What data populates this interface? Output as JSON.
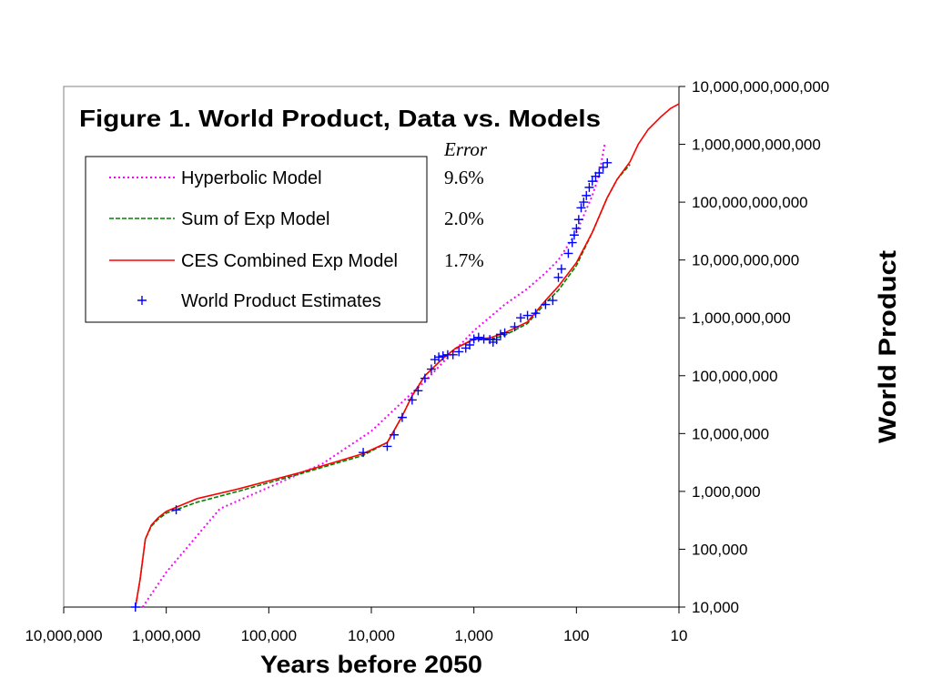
{
  "chart_data": {
    "type": "line",
    "title": "Figure 1.  World Product, Data vs. Models",
    "xlabel": "Years before 2050",
    "ylabel": "World Product",
    "x_scale": "log-reversed",
    "y_scale": "log",
    "xlim": [
      10000000,
      10
    ],
    "ylim": [
      10000,
      10000000000000
    ],
    "x_ticks": [
      {
        "value": 10000000,
        "label": "10,000,000"
      },
      {
        "value": 1000000,
        "label": "1,000,000"
      },
      {
        "value": 100000,
        "label": "100,000"
      },
      {
        "value": 10000,
        "label": "10,000"
      },
      {
        "value": 1000,
        "label": "1,000"
      },
      {
        "value": 100,
        "label": "100"
      },
      {
        "value": 10,
        "label": "10"
      }
    ],
    "y_ticks": [
      {
        "value": 10000,
        "label": "10,000"
      },
      {
        "value": 100000,
        "label": "100,000"
      },
      {
        "value": 1000000,
        "label": "1,000,000"
      },
      {
        "value": 10000000,
        "label": "10,000,000"
      },
      {
        "value": 100000000,
        "label": "100,000,000"
      },
      {
        "value": 1000000000,
        "label": "1,000,000,000"
      },
      {
        "value": 10000000000,
        "label": "10,000,000,000"
      },
      {
        "value": 100000000000,
        "label": "100,000,000,000"
      },
      {
        "value": 1000000000000,
        "label": "1,000,000,000,000"
      },
      {
        "value": 10000000000000,
        "label": "10,000,000,000,000"
      }
    ],
    "y_axis_position": "right",
    "grid": false,
    "legend_position": "top-left",
    "error_header": "Error",
    "series": [
      {
        "name": "Hyperbolic Model",
        "style": "dotted",
        "color": "#ff00ff",
        "error": "9.6%",
        "points": [
          [
            1700000,
            10000
          ],
          [
            1000000,
            40000
          ],
          [
            300000,
            500000
          ],
          [
            30000,
            3000000
          ],
          [
            10000,
            11000000
          ],
          [
            5000,
            35000000
          ],
          [
            3000,
            80000000
          ],
          [
            2000,
            170000000
          ],
          [
            1000,
            600000000
          ],
          [
            500,
            1700000000
          ],
          [
            300,
            3200000000
          ],
          [
            200,
            6000000000
          ],
          [
            150,
            10000000000
          ],
          [
            100,
            30000000000
          ],
          [
            70,
            130000000000
          ],
          [
            60,
            300000000000
          ],
          [
            53,
            1000000000000
          ]
        ]
      },
      {
        "name": "Sum of Exp Model",
        "style": "dashed",
        "color": "#008000",
        "error": "2.0%",
        "points": [
          [
            2000000,
            10000
          ],
          [
            1800000,
            30000
          ],
          [
            1600000,
            150000
          ],
          [
            1400000,
            250000
          ],
          [
            1200000,
            330000
          ],
          [
            1000000,
            420000
          ],
          [
            500000,
            650000
          ],
          [
            200000,
            1000000
          ],
          [
            50000,
            2000000
          ],
          [
            12000,
            4200000
          ],
          [
            7000,
            7000000
          ],
          [
            5000,
            20000000
          ],
          [
            4000,
            45000000
          ],
          [
            3000,
            100000000
          ],
          [
            2000,
            200000000
          ],
          [
            1500,
            300000000
          ],
          [
            1000,
            420000000
          ],
          [
            700,
            420000000
          ],
          [
            500,
            500000000
          ],
          [
            300,
            800000000
          ],
          [
            200,
            1800000000
          ],
          [
            150,
            3000000000
          ],
          [
            100,
            8000000000
          ],
          [
            70,
            30000000000
          ],
          [
            50,
            120000000000
          ],
          [
            40,
            250000000000
          ],
          [
            30,
            450000000000
          ]
        ]
      },
      {
        "name": "CES Combined Exp Model",
        "style": "solid",
        "color": "#ff0000",
        "error": "1.7%",
        "points": [
          [
            2000000,
            10000
          ],
          [
            1800000,
            30000
          ],
          [
            1600000,
            150000
          ],
          [
            1400000,
            260000
          ],
          [
            1200000,
            350000
          ],
          [
            1000000,
            450000
          ],
          [
            500000,
            750000
          ],
          [
            200000,
            1100000
          ],
          [
            50000,
            2100000
          ],
          [
            12000,
            4500000
          ],
          [
            7000,
            7000000
          ],
          [
            5000,
            20000000
          ],
          [
            4000,
            45000000
          ],
          [
            3000,
            100000000
          ],
          [
            2000,
            200000000
          ],
          [
            1500,
            300000000
          ],
          [
            1000,
            430000000
          ],
          [
            700,
            450000000
          ],
          [
            500,
            550000000
          ],
          [
            300,
            850000000
          ],
          [
            200,
            2000000000
          ],
          [
            150,
            3500000000
          ],
          [
            100,
            9000000000
          ],
          [
            70,
            30000000000
          ],
          [
            50,
            120000000000
          ],
          [
            40,
            250000000000
          ],
          [
            30,
            500000000000
          ],
          [
            25,
            1000000000000
          ],
          [
            20,
            1800000000000
          ],
          [
            15,
            3000000000000
          ],
          [
            12,
            4200000000000
          ],
          [
            10,
            5000000000000
          ]
        ]
      },
      {
        "name": "World Product Estimates",
        "style": "markers",
        "color": "#0000ff",
        "points": [
          [
            2000000,
            10000
          ],
          [
            800000,
            480000
          ],
          [
            12000,
            4700000
          ],
          [
            7000,
            6000000
          ],
          [
            6000,
            9500000
          ],
          [
            5000,
            19000000
          ],
          [
            4000,
            38000000
          ],
          [
            3500,
            55000000
          ],
          [
            3000,
            90000000
          ],
          [
            2600,
            130000000
          ],
          [
            2400,
            190000000
          ],
          [
            2200,
            210000000
          ],
          [
            2000,
            220000000
          ],
          [
            1800,
            230000000
          ],
          [
            1600,
            230000000
          ],
          [
            1400,
            260000000
          ],
          [
            1200,
            300000000
          ],
          [
            1100,
            340000000
          ],
          [
            1000,
            430000000
          ],
          [
            900,
            460000000
          ],
          [
            800,
            430000000
          ],
          [
            700,
            420000000
          ],
          [
            650,
            380000000
          ],
          [
            600,
            420000000
          ],
          [
            550,
            520000000
          ],
          [
            500,
            550000000
          ],
          [
            400,
            700000000
          ],
          [
            350,
            1000000000
          ],
          [
            300,
            1100000000
          ],
          [
            250,
            1200000000
          ],
          [
            200,
            1700000000
          ],
          [
            170,
            2000000000
          ],
          [
            150,
            5000000000
          ],
          [
            140,
            7000000000
          ],
          [
            120,
            13000000000
          ],
          [
            110,
            20000000000
          ],
          [
            105,
            27000000000
          ],
          [
            100,
            35000000000
          ],
          [
            95,
            50000000000
          ],
          [
            90,
            80000000000
          ],
          [
            85,
            100000000000
          ],
          [
            80,
            130000000000
          ],
          [
            75,
            180000000000
          ],
          [
            70,
            230000000000
          ],
          [
            65,
            280000000000
          ],
          [
            60,
            320000000000
          ],
          [
            55,
            400000000000
          ],
          [
            50,
            480000000000
          ]
        ]
      }
    ]
  }
}
